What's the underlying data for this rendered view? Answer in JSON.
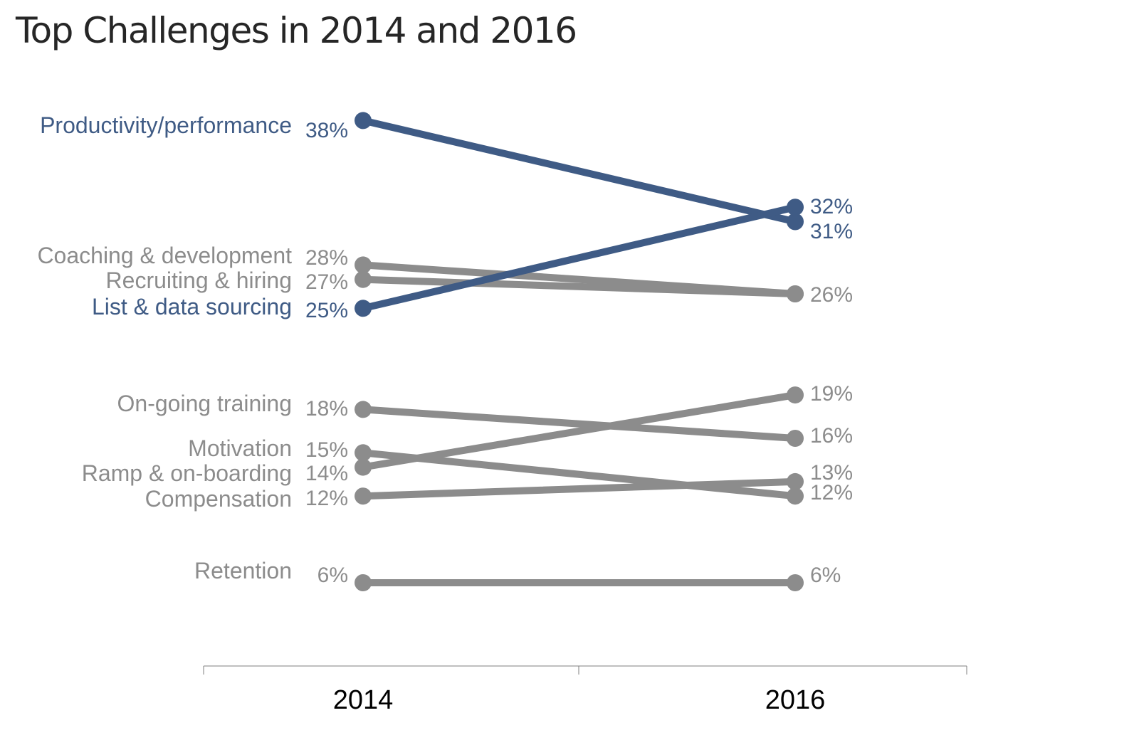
{
  "chart_data": {
    "type": "line",
    "title": "Top Challenges in 2014 and 2016",
    "x": [
      "2014",
      "2016"
    ],
    "value_suffix": "%",
    "grid": false,
    "legend": "none",
    "colors": {
      "highlight": "#3f5b85",
      "muted": "#8c8c8c",
      "axis": "#7f7f7f",
      "tick_label": "#000000",
      "title": "#262626"
    },
    "series": [
      {
        "name": "Productivity/performance",
        "values": [
          38,
          31
        ],
        "highlight": true
      },
      {
        "name": "Coaching & development",
        "values": [
          28,
          26
        ],
        "highlight": false
      },
      {
        "name": "Recruiting & hiring",
        "values": [
          27,
          26
        ],
        "highlight": false
      },
      {
        "name": "List & data sourcing",
        "values": [
          25,
          32
        ],
        "highlight": true
      },
      {
        "name": "On-going training",
        "values": [
          18,
          16
        ],
        "highlight": false
      },
      {
        "name": "Motivation",
        "values": [
          15,
          12
        ],
        "highlight": false
      },
      {
        "name": "Ramp & on-boarding",
        "values": [
          14,
          19
        ],
        "highlight": false
      },
      {
        "name": "Compensation",
        "values": [
          12,
          13
        ],
        "highlight": false
      },
      {
        "name": "Retention",
        "values": [
          6,
          6
        ],
        "highlight": false
      }
    ],
    "right_labels": [
      "32%",
      "31%",
      "26%",
      "19%",
      "16%",
      "13%",
      "12%",
      "6%"
    ]
  }
}
